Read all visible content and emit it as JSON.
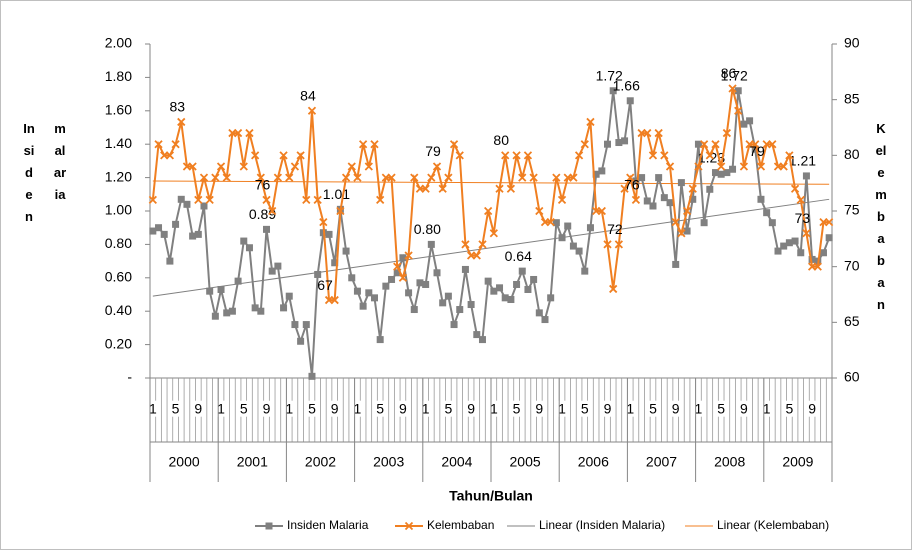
{
  "chart_data": {
    "type": "line",
    "xlabel": "Tahun/Bulan",
    "ylabel": [
      "Insiden",
      "malaria"
    ],
    "y2label": "Kelembaban",
    "years": [
      "2000",
      "2001",
      "2002",
      "2003",
      "2004",
      "2005",
      "2006",
      "2007",
      "2008",
      "2009"
    ],
    "categories": [
      "1",
      null,
      null,
      null,
      "5",
      null,
      null,
      null,
      "9",
      null,
      null,
      null,
      "1",
      null,
      null,
      null,
      "5",
      null,
      null,
      null,
      "9",
      null,
      null,
      null,
      "1",
      null,
      null,
      null,
      "5",
      null,
      null,
      null,
      "9",
      null,
      null,
      null,
      "1",
      null,
      null,
      null,
      "5",
      null,
      null,
      null,
      "9",
      null,
      null,
      null,
      "1",
      null,
      null,
      null,
      "5",
      null,
      null,
      null,
      "9",
      null,
      null,
      null,
      "1",
      null,
      null,
      null,
      "5",
      null,
      null,
      null,
      "9",
      null,
      null,
      null,
      "1",
      null,
      null,
      null,
      "5",
      null,
      null,
      null,
      "9",
      null,
      null,
      null,
      "1",
      null,
      null,
      null,
      "5",
      null,
      null,
      null,
      "9",
      null,
      null,
      null,
      "1",
      null,
      null,
      null,
      "5",
      null,
      null,
      null,
      "9",
      null,
      null,
      null,
      "1",
      null,
      null,
      null,
      "5",
      null,
      null,
      null,
      "9",
      null,
      null,
      null
    ],
    "ylim": [
      0,
      2
    ],
    "yticks": [
      {
        "value": 0,
        "label": "-"
      },
      {
        "value": 0.2,
        "label": "0.20"
      },
      {
        "value": 0.4,
        "label": "0.40"
      },
      {
        "value": 0.6,
        "label": "0.60"
      },
      {
        "value": 0.8,
        "label": "0.80"
      },
      {
        "value": 1,
        "label": "1.00"
      },
      {
        "value": 1.2,
        "label": "1.20"
      },
      {
        "value": 1.4,
        "label": "1.40"
      },
      {
        "value": 1.6,
        "label": "1.60"
      },
      {
        "value": 1.8,
        "label": "1.80"
      },
      {
        "value": 2,
        "label": "2.00"
      }
    ],
    "y2lim": [
      60,
      90
    ],
    "y2ticks": [
      60,
      65,
      70,
      75,
      80,
      85,
      90
    ],
    "legend": "bottom",
    "series": [
      {
        "name": "Insiden Malaria",
        "color": "#808080",
        "marker": "square",
        "axis": "y",
        "values": [
          0.88,
          0.9,
          0.86,
          0.7,
          0.92,
          1.07,
          1.04,
          0.85,
          0.86,
          1.03,
          0.52,
          0.37,
          0.53,
          0.39,
          0.4,
          0.58,
          0.82,
          0.78,
          0.42,
          0.4,
          0.89,
          0.64,
          0.67,
          0.42,
          0.49,
          0.32,
          0.22,
          0.32,
          0.01,
          0.62,
          0.87,
          0.86,
          0.69,
          1.01,
          0.76,
          0.6,
          0.52,
          0.43,
          0.51,
          0.48,
          0.23,
          0.55,
          0.59,
          0.63,
          0.72,
          0.51,
          0.41,
          0.57,
          0.56,
          0.8,
          0.63,
          0.45,
          0.49,
          0.32,
          0.41,
          0.65,
          0.44,
          0.26,
          0.23,
          0.58,
          0.52,
          0.54,
          0.48,
          0.47,
          0.56,
          0.64,
          0.53,
          0.59,
          0.39,
          0.35,
          0.48,
          0.93,
          0.84,
          0.91,
          0.79,
          0.76,
          0.64,
          0.9,
          1.22,
          1.24,
          1.4,
          1.72,
          1.41,
          1.42,
          1.66,
          1.18,
          1.2,
          1.06,
          1.03,
          1.2,
          1.08,
          1.05,
          0.68,
          1.17,
          0.88,
          1.07,
          1.4,
          0.93,
          1.13,
          1.23,
          1.22,
          1.23,
          1.25,
          1.72,
          1.52,
          1.54,
          1.37,
          1.07,
          0.99,
          0.93,
          0.76,
          0.79,
          0.81,
          0.82,
          0.75,
          1.21,
          0.71,
          0.7,
          0.75,
          0.84
        ],
        "value_labels": [
          null,
          null,
          null,
          null,
          null,
          null,
          null,
          null,
          null,
          null,
          null,
          null,
          null,
          null,
          null,
          null,
          null,
          null,
          null,
          null,
          "0.89",
          null,
          null,
          null,
          null,
          null,
          null,
          null,
          null,
          null,
          null,
          null,
          null,
          "1.01",
          null,
          null,
          null,
          null,
          null,
          null,
          null,
          null,
          null,
          null,
          null,
          null,
          null,
          null,
          null,
          "0.80",
          null,
          null,
          null,
          null,
          null,
          null,
          null,
          null,
          null,
          null,
          null,
          null,
          null,
          null,
          null,
          "0.64",
          null,
          null,
          null,
          null,
          null,
          null,
          null,
          null,
          null,
          null,
          null,
          null,
          null,
          null,
          null,
          "1.72",
          null,
          null,
          "1.66",
          null,
          null,
          null,
          null,
          null,
          null,
          null,
          null,
          null,
          null,
          null,
          null,
          null,
          null,
          "1.23",
          null,
          null,
          null,
          "1.72",
          null,
          null,
          null,
          null,
          null,
          null,
          null,
          null,
          null,
          null,
          null,
          "1.21",
          null,
          null,
          null,
          null
        ]
      },
      {
        "name": "Kelembaban",
        "color": "#f07f21",
        "marker": "x",
        "axis": "y2",
        "values": [
          76,
          81,
          80,
          80,
          81,
          83,
          79,
          79,
          76,
          78,
          76,
          78,
          79,
          78,
          82,
          82,
          79,
          82,
          80,
          78,
          76,
          75,
          78,
          80,
          78,
          79,
          80,
          76,
          84,
          76,
          74,
          67,
          67,
          75,
          78,
          79,
          78,
          81,
          79,
          81,
          76,
          78,
          78,
          70,
          69,
          71,
          78,
          77,
          77,
          78,
          79,
          77,
          78,
          81,
          80,
          72,
          71,
          71,
          72,
          75,
          73,
          77,
          80,
          77,
          80,
          78,
          80,
          78,
          75,
          74,
          74,
          78,
          76,
          78,
          78,
          80,
          81,
          83,
          75,
          75,
          72,
          68,
          72,
          77,
          78,
          76,
          82,
          82,
          80,
          82,
          80,
          79,
          74,
          73,
          75,
          77,
          79,
          81,
          80,
          81,
          79,
          82,
          86,
          84,
          79,
          81,
          81,
          79,
          81,
          81,
          79,
          79,
          80,
          77,
          76,
          73,
          70,
          70,
          74,
          74
        ],
        "value_labels": [
          null,
          null,
          null,
          null,
          null,
          "83",
          null,
          null,
          null,
          null,
          null,
          null,
          null,
          null,
          null,
          null,
          null,
          null,
          null,
          null,
          "76",
          null,
          null,
          null,
          null,
          null,
          null,
          null,
          "84",
          null,
          null,
          "67",
          null,
          null,
          null,
          null,
          null,
          null,
          null,
          null,
          null,
          null,
          null,
          null,
          null,
          null,
          null,
          null,
          null,
          null,
          "79",
          null,
          null,
          null,
          null,
          null,
          null,
          null,
          null,
          null,
          null,
          null,
          "80",
          null,
          null,
          null,
          null,
          null,
          null,
          null,
          null,
          null,
          null,
          null,
          null,
          null,
          null,
          null,
          null,
          null,
          null,
          null,
          "72",
          null,
          null,
          "76",
          null,
          null,
          null,
          null,
          null,
          null,
          null,
          null,
          null,
          null,
          null,
          null,
          null,
          null,
          null,
          null,
          "86",
          null,
          null,
          null,
          null,
          "79",
          null,
          null,
          null,
          null,
          null,
          null,
          null,
          "73",
          null,
          null,
          null,
          null
        ]
      }
    ],
    "trendlines": [
      {
        "name": "Linear (Insiden Malaria)",
        "color": "#808080",
        "axis": "y",
        "from": 0.49,
        "to": 1.07
      },
      {
        "name": "Linear (Kelembaban)",
        "color": "#f07f21",
        "axis": "y2",
        "from": 77.7,
        "to": 77.4
      }
    ]
  }
}
